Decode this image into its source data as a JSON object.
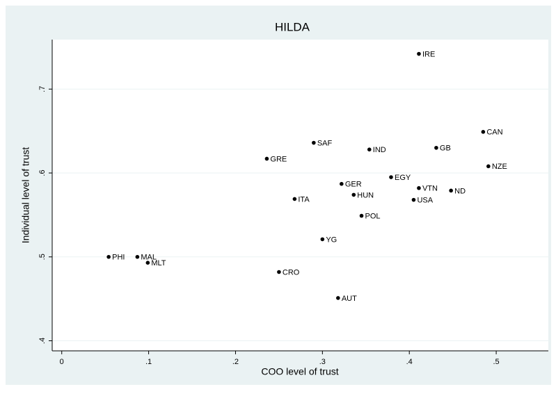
{
  "chart_data": {
    "type": "scatter",
    "title": "HILDA",
    "x_label": "COO level of trust",
    "y_label": "Individual level of trust",
    "x": [
      0.411,
      0.485,
      0.431,
      0.491,
      0.29,
      0.354,
      0.236,
      0.379,
      0.322,
      0.411,
      0.448,
      0.336,
      0.405,
      0.268,
      0.345,
      0.3,
      0.054,
      0.087,
      0.099,
      0.25,
      0.318
    ],
    "values": [
      0.742,
      0.649,
      0.63,
      0.608,
      0.636,
      0.628,
      0.617,
      0.595,
      0.587,
      0.582,
      0.579,
      0.574,
      0.568,
      0.569,
      0.549,
      0.521,
      0.5,
      0.5,
      0.493,
      0.482,
      0.451
    ],
    "point_labels": [
      "IRE",
      "CAN",
      "GB",
      "NZE",
      "SAF",
      "IND",
      "GRE",
      "EGY",
      "GER",
      "VTN",
      "ND",
      "HUN",
      "USA",
      "ITA",
      "POL",
      "YG",
      "PHI",
      "MAL",
      "MLT",
      "CRO",
      "AUT"
    ],
    "color": "#000000",
    "xlim": [
      -0.011,
      0.56
    ],
    "ylim": [
      0.388,
      0.759
    ],
    "xticks": [
      0,
      {
        "value": 0.1,
        "label": ".1"
      },
      {
        "value": 0.2,
        "label": ".2"
      },
      {
        "value": 0.3,
        "label": ".3"
      },
      {
        "value": 0.4,
        "label": ".4"
      },
      {
        "value": 0.5,
        "label": ".5"
      }
    ],
    "yticks": [
      {
        "value": 0.4,
        "label": ".4"
      },
      {
        "value": 0.5,
        "label": ".5"
      },
      {
        "value": 0.6,
        "label": ".6"
      },
      {
        "value": 0.7,
        "label": ".7"
      }
    ],
    "grid": true
  }
}
